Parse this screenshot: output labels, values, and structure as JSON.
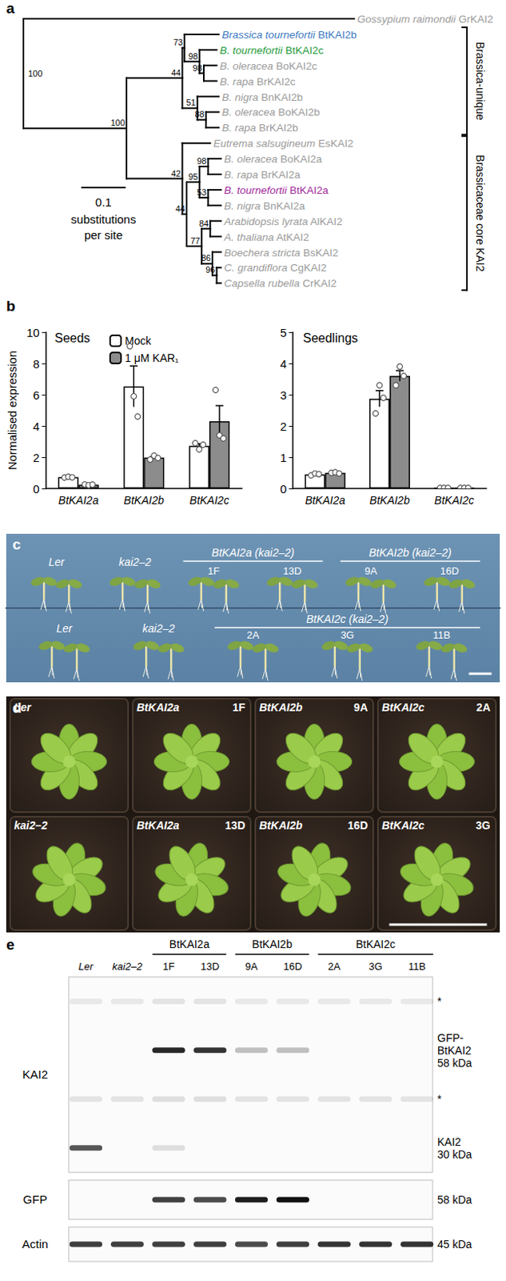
{
  "panel_labels": [
    "a",
    "b",
    "c",
    "d",
    "e"
  ],
  "tree": {
    "scale_bar": {
      "value": 0.1,
      "label": "0.1",
      "caption": [
        "substitutions",
        "per site"
      ]
    },
    "root": {
      "support": 100,
      "children": [
        {
          "species": "Gossypium raimondii",
          "gene": "GrKAI2",
          "color": "#9a9a9a",
          "length": 0.77
        },
        {
          "support": 100,
          "length": 0.24,
          "children": [
            {
              "support": 44,
              "length": 0.13,
              "children": [
                {
                  "support": 73,
                  "length": 0.005,
                  "children": [
                    {
                      "species": "Brassica tournefortii",
                      "gene": "BtKAI2b",
                      "color": "#3c78c0",
                      "length": 0.08
                    },
                    {
                      "support": 98,
                      "length": 0.035,
                      "children": [
                        {
                          "species": "B. tournefortii",
                          "gene": "BtKAI2c",
                          "color": "#1f9a3c",
                          "length": 0.04
                        },
                        {
                          "support": 98,
                          "length": 0.01,
                          "children": [
                            {
                              "species": "B. oleracea",
                              "gene": "BoKAI2c",
                              "color": "#9a9a9a",
                              "length": 0.03
                            },
                            {
                              "species": "B. rapa",
                              "gene": "BrKAI2c",
                              "color": "#9a9a9a",
                              "length": 0.03
                            }
                          ]
                        }
                      ]
                    }
                  ]
                },
                {
                  "support": 51,
                  "length": 0.035,
                  "children": [
                    {
                      "species": "B. nigra",
                      "gene": "BnKAI2b",
                      "color": "#9a9a9a",
                      "length": 0.05
                    },
                    {
                      "support": 88,
                      "length": 0.02,
                      "children": [
                        {
                          "species": "B. oleracea",
                          "gene": "BoKAI2b",
                          "color": "#9a9a9a",
                          "length": 0.03
                        },
                        {
                          "species": "B. rapa",
                          "gene": "BrKAI2b",
                          "color": "#9a9a9a",
                          "length": 0.03
                        }
                      ]
                    }
                  ]
                }
              ]
            },
            {
              "support": 42,
              "length": 0.13,
              "children": [
                {
                  "species": "Eutrema salsugineum",
                  "gene": "EsKAI2",
                  "color": "#9a9a9a",
                  "length": 0.065
                },
                {
                  "support": 44,
                  "length": 0.01,
                  "children": [
                    {
                      "support": 95,
                      "length": 0.03,
                      "children": [
                        {
                          "support": 98,
                          "length": 0.02,
                          "children": [
                            {
                              "species": "B. oleracea",
                              "gene": "BoKAI2a",
                              "color": "#9a9a9a",
                              "length": 0.03
                            },
                            {
                              "species": "B. rapa",
                              "gene": "BrKAI2a",
                              "color": "#9a9a9a",
                              "length": 0.03
                            }
                          ]
                        },
                        {
                          "support": 53,
                          "length": 0.02,
                          "children": [
                            {
                              "species": "B. tournefortii",
                              "gene": "BtKAI2a",
                              "color": "#a0289a",
                              "length": 0.03
                            },
                            {
                              "species": "B. nigra",
                              "gene": "BnKAI2a",
                              "color": "#9a9a9a",
                              "length": 0.03
                            }
                          ]
                        }
                      ]
                    },
                    {
                      "support": 77,
                      "length": 0.035,
                      "children": [
                        {
                          "support": 84,
                          "length": 0.02,
                          "children": [
                            {
                              "species": "Arabidopsis lyrata",
                              "gene": "AlKAI2",
                              "color": "#9a9a9a",
                              "length": 0.025
                            },
                            {
                              "species": "A. thaliana",
                              "gene": "AtKAI2",
                              "color": "#9a9a9a",
                              "length": 0.025
                            }
                          ]
                        },
                        {
                          "support": 86,
                          "length": 0.025,
                          "children": [
                            {
                              "species": "Boechera stricta",
                              "gene": "BsKAI2",
                              "color": "#9a9a9a",
                              "length": 0.02
                            },
                            {
                              "support": 96,
                              "length": 0.01,
                              "children": [
                                {
                                  "species": "C. grandiflora",
                                  "gene": "CgKAI2",
                                  "color": "#9a9a9a",
                                  "length": 0.01
                                },
                                {
                                  "species": "Capsella rubella",
                                  "gene": "CrKAI2",
                                  "color": "#9a9a9a",
                                  "length": 0.01
                                }
                              ]
                            }
                          ]
                        }
                      ]
                    }
                  ]
                }
              ]
            }
          ]
        }
      ]
    },
    "clades": [
      {
        "label": "Brassica-unique",
        "from": "BtKAI2b",
        "to": "BrKAI2b"
      },
      {
        "label": "Brassicaceae core KAI2",
        "from": "EsKAI2",
        "to": "CrKAI2"
      }
    ]
  },
  "chart_data": [
    {
      "type": "bar",
      "title": "Seeds",
      "y_label": "Normalised expression",
      "categories": [
        "BtKAI2a",
        "BtKAI2b",
        "BtKAI2c"
      ],
      "ylim": [
        0,
        10
      ],
      "yticks": [
        0,
        2,
        4,
        6,
        8,
        10
      ],
      "legend": "top",
      "series": [
        {
          "name": "Mock",
          "color": "#ffffff",
          "values": [
            0.72,
            6.53,
            2.73
          ],
          "errors": [
            0.02,
            1.31,
            0.13
          ],
          "points": [
            [
              0.7,
              0.75,
              0.71
            ],
            [
              9.1,
              5.9,
              4.6
            ],
            [
              2.9,
              2.5,
              2.8
            ]
          ]
        },
        {
          "name": "1 μM KAR₁",
          "color": "#8c8c8c",
          "values": [
            0.24,
            1.97,
            4.3
          ],
          "errors": [
            0.02,
            0.07,
            1.0
          ],
          "points": [
            [
              0.26,
              0.21,
              0.25
            ],
            [
              1.85,
              2.1,
              1.95
            ],
            [
              6.3,
              3.4,
              3.2
            ]
          ]
        }
      ]
    },
    {
      "type": "bar",
      "title": "Seedlings",
      "categories": [
        "BtKAI2a",
        "BtKAI2b",
        "BtKAI2c"
      ],
      "ylim": [
        0,
        5
      ],
      "yticks": [
        0,
        1,
        2,
        3,
        4,
        5
      ],
      "series": [
        {
          "name": "Mock",
          "color": "#ffffff",
          "values": [
            0.45,
            2.87,
            0.02
          ],
          "errors": [
            0.02,
            0.26,
            0
          ],
          "points": [
            [
              0.42,
              0.48,
              0.46
            ],
            [
              2.4,
              3.3,
              2.9
            ],
            [
              0.02,
              0.02,
              0.02
            ]
          ]
        },
        {
          "name": "1 μM KAR₁",
          "color": "#8c8c8c",
          "values": [
            0.5,
            3.6,
            0.02
          ],
          "errors": [
            0.01,
            0.17,
            0
          ],
          "points": [
            [
              0.5,
              0.52,
              0.48
            ],
            [
              3.3,
              3.9,
              3.6
            ],
            [
              0.02,
              0.02,
              0.02
            ]
          ]
        }
      ]
    }
  ],
  "seedling_photo": {
    "rows": [
      {
        "groups": [
          {
            "label": "Ler",
            "lines": []
          },
          {
            "label": "kai2–2",
            "lines": []
          },
          {
            "label": "BtKAI2a (kai2–2)",
            "lines": [
              "1F",
              "13D"
            ]
          },
          {
            "label": "BtKAI2b (kai2–2)",
            "lines": [
              "9A",
              "16D"
            ]
          }
        ]
      },
      {
        "groups": [
          {
            "label": "Ler",
            "lines": []
          },
          {
            "label": "kai2–2",
            "lines": []
          },
          {
            "label": "BtKAI2c (kai2–2)",
            "lines": [
              "2A",
              "3G",
              "11B"
            ]
          }
        ]
      }
    ]
  },
  "rosette_photo": {
    "rows": [
      [
        {
          "label": "Ler"
        },
        {
          "label": "BtKAI2a",
          "line": "1F"
        },
        {
          "label": "BtKAI2b",
          "line": "9A"
        },
        {
          "label": "BtKAI2c",
          "line": "2A"
        }
      ],
      [
        {
          "label": "kai2–2"
        },
        {
          "label": "BtKAI2a",
          "line": "13D"
        },
        {
          "label": "BtKAI2b",
          "line": "16D"
        },
        {
          "label": "BtKAI2c",
          "line": "3G"
        }
      ]
    ]
  },
  "blot": {
    "lanes": [
      "Ler",
      "kai2–2",
      "1F",
      "13D",
      "9A",
      "16D",
      "2A",
      "3G",
      "11B"
    ],
    "groups": [
      {
        "label": "BtKAI2a",
        "lanes": [
          "1F",
          "13D"
        ]
      },
      {
        "label": "BtKAI2b",
        "lanes": [
          "9A",
          "16D"
        ]
      },
      {
        "label": "BtKAI2c",
        "lanes": [
          "2A",
          "3G",
          "11B"
        ]
      }
    ],
    "rows": [
      {
        "antibody": "KAI2",
        "bands": [
          {
            "label": [
              "*"
            ],
            "intensity": [
              0.08,
              0.08,
              0.1,
              0.1,
              0.08,
              0.08,
              0.08,
              0.08,
              0.08
            ]
          },
          {
            "label": [
              "GFP-",
              "BtKAI2",
              "58 kDa"
            ],
            "intensity": [
              0,
              0,
              0.9,
              0.85,
              0.25,
              0.25,
              0,
              0,
              0
            ]
          },
          {
            "label": [
              "*"
            ],
            "intensity": [
              0.1,
              0.1,
              0.12,
              0.12,
              0.1,
              0.1,
              0.1,
              0.1,
              0.1
            ]
          },
          {
            "label": [
              "KAI2",
              "30 kDa"
            ],
            "intensity": [
              0.7,
              0,
              0.12,
              0,
              0,
              0,
              0,
              0,
              0
            ]
          }
        ]
      },
      {
        "antibody": "GFP",
        "bands": [
          {
            "label": [
              "58 kDa"
            ],
            "intensity": [
              0,
              0,
              0.8,
              0.75,
              0.95,
              1,
              0,
              0,
              0
            ]
          }
        ]
      },
      {
        "antibody": "Actin",
        "bands": [
          {
            "label": [
              "45 kDa"
            ],
            "intensity": [
              0.8,
              0.8,
              0.8,
              0.8,
              0.75,
              0.8,
              0.85,
              0.85,
              0.85
            ]
          }
        ]
      }
    ]
  }
}
